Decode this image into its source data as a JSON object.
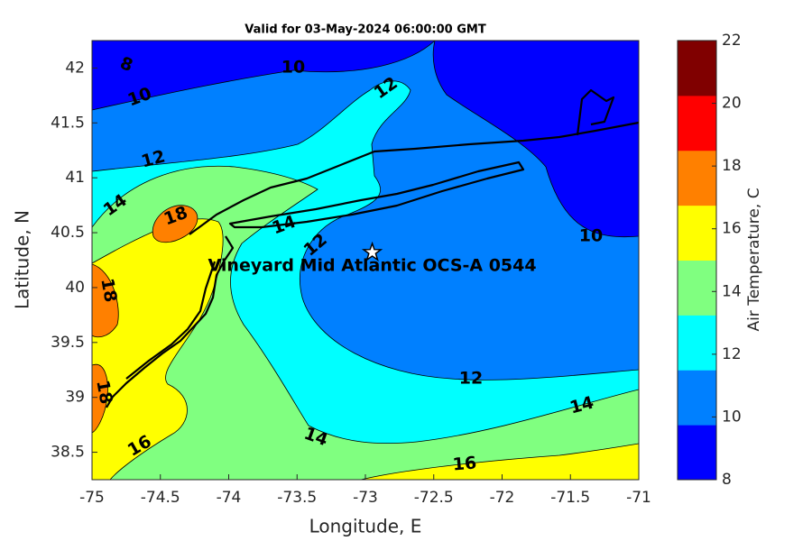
{
  "chart_data": {
    "type": "contour",
    "title": "Valid for 03-May-2024 06:00:00 GMT",
    "x_label": "Longitude, E",
    "y_label": "Latitude, N",
    "xlim": [
      -75,
      -71
    ],
    "ylim": [
      38.25,
      42.25
    ],
    "xticks": [
      -75,
      -74.5,
      -74,
      -73.5,
      -73,
      -72.5,
      -72,
      -71.5,
      -71
    ],
    "yticks": [
      38.5,
      39,
      39.5,
      40,
      40.5,
      41,
      41.5,
      42
    ],
    "colorbar": {
      "label": "Air Temperature, C",
      "lim": [
        8,
        22
      ],
      "ticks": [
        8,
        10,
        12,
        14,
        16,
        18,
        20,
        22
      ],
      "colors": [
        "#0000ff",
        "#0080ff",
        "#00ffff",
        "#80ff80",
        "#ffff00",
        "#ff8000",
        "#ff0000",
        "#800000"
      ]
    },
    "contour_labels": [
      8,
      10,
      10,
      12,
      12,
      14,
      18,
      14,
      12,
      10,
      18,
      12,
      14,
      14,
      16,
      16,
      18
    ],
    "site": {
      "label": "Vineyard Mid Atlantic OCS-A 0544",
      "lon": -72.95,
      "lat": 40.32
    }
  }
}
